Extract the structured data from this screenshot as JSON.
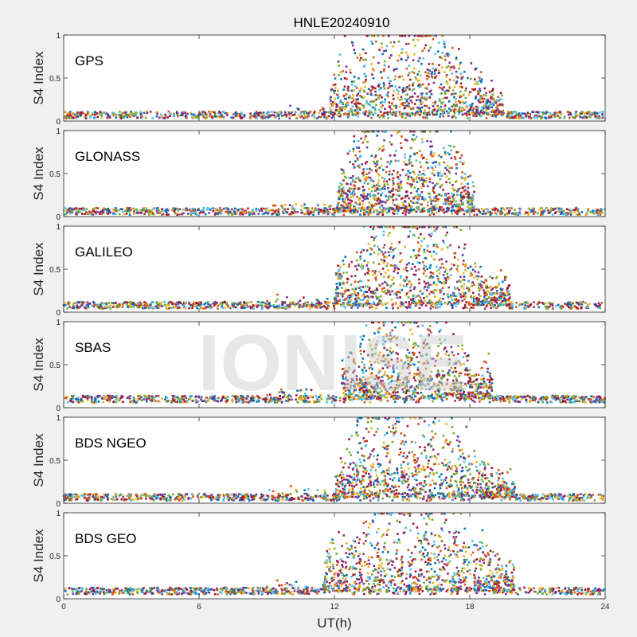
{
  "chart_data": {
    "type": "scatter",
    "title": "HNLE20240910",
    "xlabel": "UT(h)",
    "ylabel": "S4 Index",
    "xlim": [
      0,
      24
    ],
    "ylim": [
      0,
      1
    ],
    "xticks": [
      0,
      6,
      12,
      18,
      24
    ],
    "yticks": [
      0,
      0.5,
      1
    ],
    "watermark": "IONISE",
    "colors": [
      "#0072bd",
      "#d95319",
      "#edb120",
      "#7e2f8e",
      "#77ac30",
      "#4dbeee",
      "#a2142f"
    ],
    "panels": [
      {
        "name": "GPS",
        "scint_start": 11.8,
        "scint_end": 19.5,
        "scint_peak": 0.75,
        "quiet_level": 0.07,
        "activity_profile": [
          {
            "x": 0,
            "y": 0.08
          },
          {
            "x": 11.5,
            "y": 0.1
          },
          {
            "x": 12.5,
            "y": 0.45
          },
          {
            "x": 14,
            "y": 0.6
          },
          {
            "x": 16,
            "y": 0.6
          },
          {
            "x": 18,
            "y": 0.35
          },
          {
            "x": 19.5,
            "y": 0.15
          },
          {
            "x": 24,
            "y": 0.1
          }
        ]
      },
      {
        "name": "GLONASS",
        "scint_start": 12.1,
        "scint_end": 18.2,
        "scint_peak": 0.8,
        "quiet_level": 0.06,
        "activity_profile": [
          {
            "x": 0,
            "y": 0.06
          },
          {
            "x": 12,
            "y": 0.06
          },
          {
            "x": 13,
            "y": 0.55
          },
          {
            "x": 14.5,
            "y": 0.5
          },
          {
            "x": 16,
            "y": 0.6
          },
          {
            "x": 17.5,
            "y": 0.4
          },
          {
            "x": 18.5,
            "y": 0.1
          },
          {
            "x": 24,
            "y": 0.07
          }
        ]
      },
      {
        "name": "GALILEO",
        "scint_start": 12.0,
        "scint_end": 19.8,
        "scint_peak": 0.8,
        "quiet_level": 0.08,
        "activity_profile": [
          {
            "x": 0,
            "y": 0.08
          },
          {
            "x": 11.5,
            "y": 0.1
          },
          {
            "x": 13,
            "y": 0.4
          },
          {
            "x": 14.5,
            "y": 0.6
          },
          {
            "x": 16,
            "y": 0.65
          },
          {
            "x": 17.5,
            "y": 0.45
          },
          {
            "x": 18.5,
            "y": 0.2
          },
          {
            "x": 24,
            "y": 0.1
          }
        ]
      },
      {
        "name": "SBAS",
        "scint_start": 12.3,
        "scint_end": 19.0,
        "scint_peak": 0.7,
        "quiet_level": 0.1,
        "activity_profile": [
          {
            "x": 0,
            "y": 0.12
          },
          {
            "x": 12,
            "y": 0.12
          },
          {
            "x": 13,
            "y": 0.35
          },
          {
            "x": 15,
            "y": 0.55
          },
          {
            "x": 17,
            "y": 0.45
          },
          {
            "x": 18.5,
            "y": 0.2
          },
          {
            "x": 24,
            "y": 0.1
          }
        ]
      },
      {
        "name": "BDS NGEO",
        "scint_start": 12.0,
        "scint_end": 20.0,
        "scint_peak": 0.8,
        "quiet_level": 0.07,
        "activity_profile": [
          {
            "x": 0,
            "y": 0.07
          },
          {
            "x": 12,
            "y": 0.08
          },
          {
            "x": 13,
            "y": 0.5
          },
          {
            "x": 15,
            "y": 0.55
          },
          {
            "x": 17,
            "y": 0.6
          },
          {
            "x": 18.5,
            "y": 0.25
          },
          {
            "x": 20,
            "y": 0.1
          },
          {
            "x": 24,
            "y": 0.07
          }
        ]
      },
      {
        "name": "BDS GEO",
        "scint_start": 11.5,
        "scint_end": 20.0,
        "scint_peak": 0.8,
        "quiet_level": 0.09,
        "activity_profile": [
          {
            "x": 0,
            "y": 0.1
          },
          {
            "x": 11.3,
            "y": 0.1
          },
          {
            "x": 12,
            "y": 0.35
          },
          {
            "x": 14,
            "y": 0.45
          },
          {
            "x": 16,
            "y": 0.6
          },
          {
            "x": 18,
            "y": 0.4
          },
          {
            "x": 19.5,
            "y": 0.2
          },
          {
            "x": 24,
            "y": 0.1
          }
        ]
      }
    ]
  }
}
